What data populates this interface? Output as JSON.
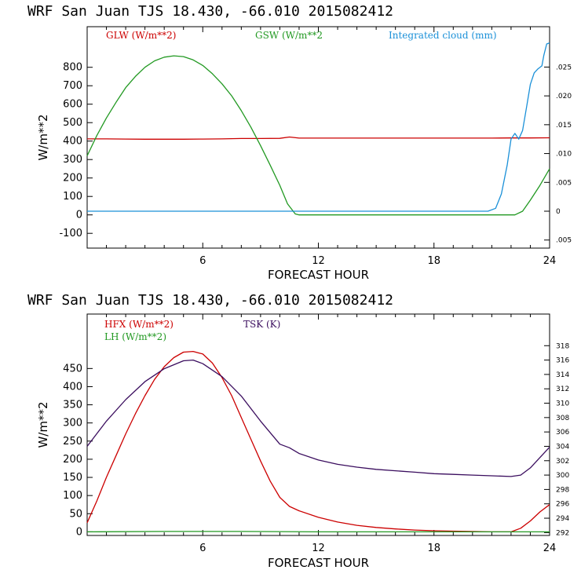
{
  "chart_data": [
    {
      "type": "line",
      "title": "WRF  San Juan TJS  18.430, -66.010  2015082412",
      "xlabel": "FORECAST HOUR",
      "ylabel": "W/m**2",
      "xlim": [
        0,
        24
      ],
      "ylim": [
        -180,
        1020
      ],
      "y2lim": [
        -0.0064,
        0.032
      ],
      "x_ticks": [
        6,
        12,
        18,
        24
      ],
      "y_ticks": [
        -100,
        0,
        100,
        200,
        300,
        400,
        500,
        600,
        700,
        800
      ],
      "y2_ticks": [
        -0.005,
        0,
        0.005,
        0.01,
        0.015,
        0.02,
        0.025
      ],
      "y2_tick_labels": [
        ".005",
        "0",
        ".005",
        ".010",
        ".015",
        ".020",
        ".025"
      ],
      "grid": false,
      "legend_position": "top",
      "series": [
        {
          "name": "GLW (W/m**2)",
          "color": "#cc0000",
          "axis": "left",
          "points": [
            [
              0,
              412
            ],
            [
              1,
              412
            ],
            [
              2,
              411
            ],
            [
              3,
              410
            ],
            [
              4,
              410
            ],
            [
              5,
              410
            ],
            [
              6,
              411
            ],
            [
              7,
              412
            ],
            [
              8,
              414
            ],
            [
              9,
              414
            ],
            [
              10,
              415
            ],
            [
              10.5,
              422
            ],
            [
              11,
              416
            ],
            [
              12,
              416
            ],
            [
              13,
              416
            ],
            [
              14,
              416
            ],
            [
              15,
              416
            ],
            [
              16,
              416
            ],
            [
              17,
              416
            ],
            [
              18,
              416
            ],
            [
              19,
              416
            ],
            [
              20,
              416
            ],
            [
              21,
              416
            ],
            [
              22,
              417
            ],
            [
              23,
              417
            ],
            [
              24,
              418
            ]
          ]
        },
        {
          "name": "GSW (W/m**2",
          "color": "#229922",
          "axis": "left",
          "points": [
            [
              0,
              320
            ],
            [
              0.5,
              430
            ],
            [
              1,
              525
            ],
            [
              1.5,
              610
            ],
            [
              2,
              690
            ],
            [
              2.5,
              750
            ],
            [
              3,
              800
            ],
            [
              3.5,
              835
            ],
            [
              4,
              855
            ],
            [
              4.5,
              862
            ],
            [
              5,
              858
            ],
            [
              5.5,
              840
            ],
            [
              6,
              810
            ],
            [
              6.5,
              765
            ],
            [
              7,
              710
            ],
            [
              7.5,
              645
            ],
            [
              8,
              565
            ],
            [
              8.5,
              475
            ],
            [
              9,
              375
            ],
            [
              9.5,
              270
            ],
            [
              10,
              160
            ],
            [
              10.4,
              60
            ],
            [
              10.8,
              5
            ],
            [
              11,
              0
            ],
            [
              12,
              0
            ],
            [
              14,
              0
            ],
            [
              16,
              0
            ],
            [
              18,
              0
            ],
            [
              20,
              0
            ],
            [
              22,
              0
            ],
            [
              22.2,
              0
            ],
            [
              22.6,
              20
            ],
            [
              23,
              80
            ],
            [
              23.5,
              160
            ],
            [
              24,
              250
            ]
          ]
        },
        {
          "name": "Integrated cloud (mm)",
          "color": "#1a90d8",
          "axis": "right",
          "points": [
            [
              0,
              0
            ],
            [
              4,
              0
            ],
            [
              8,
              0
            ],
            [
              12,
              0
            ],
            [
              16,
              0
            ],
            [
              20,
              0
            ],
            [
              20.8,
              0
            ],
            [
              21.2,
              0.0005
            ],
            [
              21.5,
              0.003
            ],
            [
              21.8,
              0.008
            ],
            [
              22,
              0.0125
            ],
            [
              22.2,
              0.0135
            ],
            [
              22.4,
              0.0125
            ],
            [
              22.6,
              0.014
            ],
            [
              22.8,
              0.018
            ],
            [
              23,
              0.022
            ],
            [
              23.2,
              0.024
            ],
            [
              23.4,
              0.0247
            ],
            [
              23.6,
              0.0252
            ],
            [
              23.7,
              0.027
            ],
            [
              23.85,
              0.029
            ],
            [
              24,
              0.0292
            ]
          ]
        }
      ]
    },
    {
      "type": "line",
      "title": "WRF  San Juan TJS  18.430, -66.010  2015082412",
      "xlabel": "FORECAST HOUR",
      "ylabel": "W/m**2",
      "xlim": [
        0,
        24
      ],
      "ylim": [
        -10,
        600
      ],
      "y2lim": [
        291.6,
        322.4
      ],
      "x_ticks": [
        6,
        12,
        18,
        24
      ],
      "y_ticks": [
        0,
        50,
        100,
        150,
        200,
        250,
        300,
        350,
        400,
        450
      ],
      "y2_ticks": [
        292,
        294,
        296,
        298,
        300,
        302,
        304,
        306,
        308,
        310,
        312,
        314,
        316,
        318
      ],
      "grid": false,
      "legend_position": "top-left",
      "series": [
        {
          "name": "HFX (W/m**2)",
          "color": "#cc0000",
          "axis": "left",
          "points": [
            [
              0,
              25
            ],
            [
              0.5,
              85
            ],
            [
              1,
              150
            ],
            [
              1.5,
              210
            ],
            [
              2,
              270
            ],
            [
              2.5,
              325
            ],
            [
              3,
              375
            ],
            [
              3.5,
              420
            ],
            [
              4,
              455
            ],
            [
              4.5,
              480
            ],
            [
              5,
              495
            ],
            [
              5.5,
              497
            ],
            [
              6,
              490
            ],
            [
              6.5,
              465
            ],
            [
              7,
              425
            ],
            [
              7.5,
              375
            ],
            [
              8,
              315
            ],
            [
              8.5,
              255
            ],
            [
              9,
              195
            ],
            [
              9.5,
              140
            ],
            [
              10,
              95
            ],
            [
              10.5,
              70
            ],
            [
              11,
              58
            ],
            [
              12,
              40
            ],
            [
              13,
              27
            ],
            [
              14,
              18
            ],
            [
              15,
              12
            ],
            [
              16,
              8
            ],
            [
              17,
              5
            ],
            [
              18,
              3
            ],
            [
              19,
              2
            ],
            [
              20,
              1
            ],
            [
              21,
              0
            ],
            [
              22,
              0
            ],
            [
              22.5,
              10
            ],
            [
              23,
              30
            ],
            [
              23.5,
              55
            ],
            [
              24,
              75
            ]
          ]
        },
        {
          "name": "LH  (W/m**2)",
          "color": "#229922",
          "axis": "left",
          "points": [
            [
              0,
              0
            ],
            [
              4,
              1
            ],
            [
              8,
              1
            ],
            [
              12,
              0
            ],
            [
              16,
              0
            ],
            [
              20,
              0
            ],
            [
              24,
              0
            ]
          ]
        },
        {
          "name": "TSK (K)",
          "color": "#3a0d5e",
          "axis": "right",
          "points": [
            [
              0,
              304
            ],
            [
              1,
              307.5
            ],
            [
              2,
              310.5
            ],
            [
              3,
              313
            ],
            [
              4,
              314.8
            ],
            [
              5,
              315.9
            ],
            [
              5.5,
              316
            ],
            [
              6,
              315.5
            ],
            [
              7,
              313.7
            ],
            [
              8,
              311
            ],
            [
              9,
              307.5
            ],
            [
              10,
              304.3
            ],
            [
              10.5,
              303.8
            ],
            [
              11,
              303
            ],
            [
              12,
              302.1
            ],
            [
              13,
              301.5
            ],
            [
              14,
              301.1
            ],
            [
              15,
              300.8
            ],
            [
              16,
              300.6
            ],
            [
              17,
              300.4
            ],
            [
              18,
              300.2
            ],
            [
              19,
              300.1
            ],
            [
              20,
              300
            ],
            [
              21,
              299.9
            ],
            [
              22,
              299.8
            ],
            [
              22.5,
              300
            ],
            [
              23,
              301
            ],
            [
              24,
              303.9
            ]
          ]
        }
      ]
    }
  ]
}
